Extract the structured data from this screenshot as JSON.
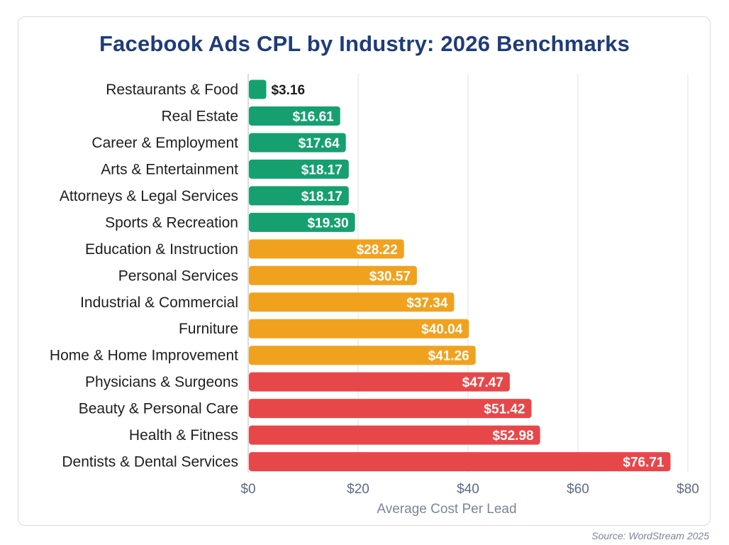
{
  "title": "Facebook Ads CPL by Industry: 2026 Benchmarks",
  "source": "Source: WordStream 2025",
  "colors": {
    "low": "#16a070",
    "mid": "#f0a21f",
    "high": "#e8474a",
    "title": "#1f3c78",
    "grid": "#e3e6ea",
    "tick": "#5c6b80",
    "label": "#1e1e1e"
  },
  "chart_data": {
    "type": "bar",
    "orientation": "horizontal",
    "title": "Facebook Ads CPL by Industry: 2026 Benchmarks",
    "xlabel": "Average Cost Per Lead",
    "ylabel": "",
    "xlim": [
      0,
      80
    ],
    "xticks": [
      0,
      20,
      40,
      60,
      80
    ],
    "xtick_labels": [
      "$0",
      "$20",
      "$40",
      "$60",
      "$80"
    ],
    "grid": "vertical",
    "categories": [
      "Restaurants & Food",
      "Real Estate",
      "Career & Employment",
      "Arts & Entertainment",
      "Attorneys & Legal Services",
      "Sports & Recreation",
      "Education & Instruction",
      "Personal Services",
      "Industrial & Commercial",
      "Furniture",
      "Home & Home Improvement",
      "Physicians & Surgeons",
      "Beauty & Personal Care",
      "Health & Fitness",
      "Dentists & Dental Services"
    ],
    "values": [
      3.16,
      16.61,
      17.64,
      18.17,
      18.17,
      19.3,
      28.22,
      30.57,
      37.34,
      40.04,
      41.26,
      47.47,
      51.42,
      52.98,
      76.71
    ],
    "value_labels": [
      "$3.16",
      "$16.61",
      "$17.64",
      "$18.17",
      "$18.17",
      "$19.30",
      "$28.22",
      "$30.57",
      "$37.34",
      "$40.04",
      "$41.26",
      "$47.47",
      "$51.42",
      "$52.98",
      "$76.71"
    ],
    "tiers": [
      "low",
      "low",
      "low",
      "low",
      "low",
      "low",
      "mid",
      "mid",
      "mid",
      "mid",
      "mid",
      "high",
      "high",
      "high",
      "high"
    ]
  }
}
